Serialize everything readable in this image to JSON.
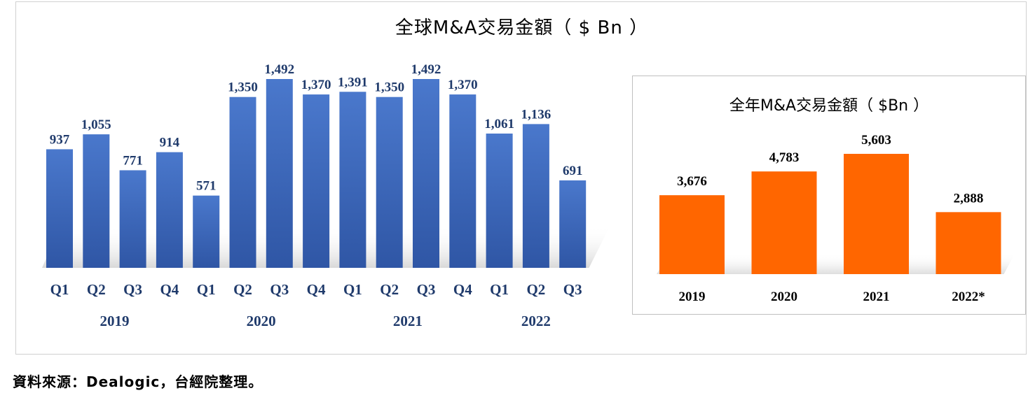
{
  "title": "全球M&A交易金額（ $ Bn ）",
  "source_note": "資料來源：Dealogic，台經院整理。",
  "chart_data": [
    {
      "type": "bar",
      "title": "全球M&A交易金額（ $ Bn ）",
      "categories": [
        "Q1",
        "Q2",
        "Q3",
        "Q4",
        "Q1",
        "Q2",
        "Q3",
        "Q4",
        "Q1",
        "Q2",
        "Q3",
        "Q4",
        "Q1",
        "Q2",
        "Q3"
      ],
      "groups": [
        {
          "label": "2019",
          "count": 4
        },
        {
          "label": "2020",
          "count": 4
        },
        {
          "label": "2021",
          "count": 4
        },
        {
          "label": "2022",
          "count": 3
        }
      ],
      "values": [
        937,
        1055,
        771,
        914,
        571,
        1350,
        1492,
        1370,
        1391,
        1350,
        1492,
        1370,
        1061,
        1136,
        691
      ],
      "value_labels": [
        "937",
        "1,055",
        "771",
        "914",
        "571",
        "1,350",
        "1,492",
        "1,370",
        "1,391",
        "1,350",
        "1,492",
        "1,370",
        "1,061",
        "1,136",
        "691"
      ],
      "ylim": [
        0,
        1492
      ],
      "color": "#4472c4",
      "grid": false,
      "legend": "none"
    },
    {
      "type": "bar",
      "title": "全年M&A交易金額（ $Bn ）",
      "categories": [
        "2019",
        "2020",
        "2021",
        "2022*"
      ],
      "values": [
        3676,
        4783,
        5603,
        2888
      ],
      "value_labels": [
        "3,676",
        "4,783",
        "5,603",
        "2,888"
      ],
      "ylim": [
        0,
        5603
      ],
      "color": "#ff6600",
      "grid": false,
      "legend": "none"
    }
  ]
}
